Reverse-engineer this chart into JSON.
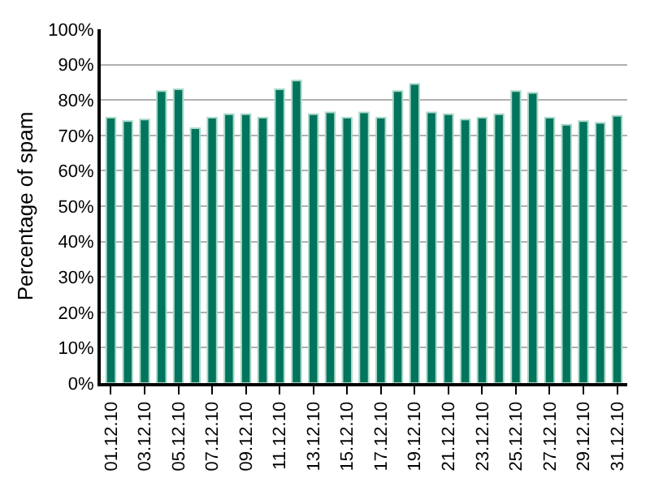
{
  "chart_data": {
    "type": "bar",
    "ylabel": "Percentage of spam",
    "categories": [
      "01.12.10",
      null,
      "03.12.10",
      null,
      "05.12.10",
      null,
      "07.12.10",
      null,
      "09.12.10",
      null,
      "11.12.10",
      null,
      "13.12.10",
      null,
      "15.12.10",
      null,
      "17.12.10",
      null,
      "19.12.10",
      null,
      "21.12.10",
      null,
      "23.12.10",
      null,
      "25.12.10",
      null,
      "27.12.10",
      null,
      "29.12.10",
      null,
      "31.12.10"
    ],
    "values": [
      75,
      74,
      74.5,
      82.5,
      83,
      72,
      75,
      76,
      76,
      75,
      83,
      85.5,
      76,
      76.5,
      75,
      76.5,
      75,
      82.5,
      84.5,
      76.5,
      76,
      74.5,
      75,
      76,
      82.5,
      82,
      75,
      73,
      74,
      73.5,
      75.5
    ],
    "color": "#00745c",
    "ylim": [
      0,
      100
    ],
    "yticks": [
      {
        "value": 0,
        "label": "0%"
      },
      {
        "value": 10,
        "label": "10%"
      },
      {
        "value": 20,
        "label": "20%"
      },
      {
        "value": 30,
        "label": "30%"
      },
      {
        "value": 40,
        "label": "40%"
      },
      {
        "value": 50,
        "label": "50%"
      },
      {
        "value": 60,
        "label": "60%"
      },
      {
        "value": 70,
        "label": "70%"
      },
      {
        "value": 80,
        "label": "80%"
      },
      {
        "value": 90,
        "label": "90%"
      },
      {
        "value": 100,
        "label": "100%"
      }
    ],
    "grid": "y"
  }
}
